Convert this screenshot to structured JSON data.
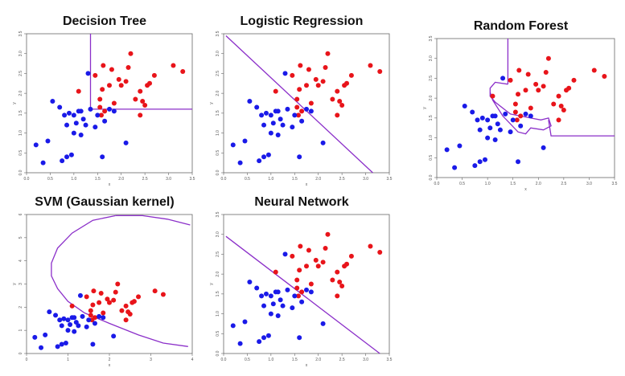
{
  "colors": {
    "class_red": "#e8141a",
    "class_blue": "#1a1ae8",
    "boundary": "#8b2fc9",
    "frame": "#666666"
  },
  "shared_points": {
    "red": [
      [
        1.1,
        2.05
      ],
      [
        1.45,
        2.45
      ],
      [
        1.55,
        1.85
      ],
      [
        1.6,
        2.1
      ],
      [
        1.62,
        2.7
      ],
      [
        1.58,
        1.45
      ],
      [
        1.55,
        1.65
      ],
      [
        1.65,
        1.55
      ],
      [
        1.75,
        2.2
      ],
      [
        1.8,
        2.6
      ],
      [
        1.85,
        1.75
      ],
      [
        1.95,
        2.35
      ],
      [
        2.0,
        2.2
      ],
      [
        2.1,
        2.3
      ],
      [
        2.15,
        2.65
      ],
      [
        2.2,
        3.0
      ],
      [
        2.3,
        1.85
      ],
      [
        2.4,
        2.05
      ],
      [
        2.4,
        1.45
      ],
      [
        2.5,
        1.7
      ],
      [
        2.55,
        2.2
      ],
      [
        2.6,
        2.25
      ],
      [
        2.7,
        2.45
      ],
      [
        3.1,
        2.7
      ],
      [
        3.3,
        2.55
      ],
      [
        2.45,
        1.8
      ]
    ],
    "blue": [
      [
        0.2,
        0.7
      ],
      [
        0.35,
        0.25
      ],
      [
        0.45,
        0.8
      ],
      [
        0.55,
        1.8
      ],
      [
        0.7,
        1.65
      ],
      [
        0.8,
        1.45
      ],
      [
        0.85,
        1.2
      ],
      [
        0.85,
        0.4
      ],
      [
        0.95,
        0.45
      ],
      [
        0.9,
        1.5
      ],
      [
        1.0,
        1.45
      ],
      [
        1.0,
        1.0
      ],
      [
        1.05,
        1.25
      ],
      [
        1.1,
        1.55
      ],
      [
        1.15,
        1.55
      ],
      [
        1.2,
        1.35
      ],
      [
        1.25,
        1.2
      ],
      [
        1.3,
        2.5
      ],
      [
        1.35,
        1.6
      ],
      [
        1.45,
        1.15
      ],
      [
        1.5,
        1.45
      ],
      [
        1.6,
        0.4
      ],
      [
        1.65,
        1.3
      ],
      [
        1.75,
        1.6
      ],
      [
        1.85,
        1.55
      ],
      [
        2.1,
        0.75
      ],
      [
        0.75,
        0.3
      ],
      [
        1.15,
        0.95
      ]
    ]
  },
  "chart_data": [
    {
      "type": "scatter",
      "title": "Decision Tree",
      "xlabel": "x",
      "ylabel": "y",
      "xlim": [
        0.0,
        3.5
      ],
      "ylim": [
        0.0,
        3.5
      ],
      "xticks": [
        0.0,
        0.5,
        1.0,
        1.5,
        2.0,
        2.5,
        3.0,
        3.5
      ],
      "yticks": [
        0.0,
        0.5,
        1.0,
        1.5,
        2.0,
        2.5,
        3.0,
        3.5
      ],
      "xtick_labels": [
        "0.0",
        "0.5",
        "1.0",
        "1.5",
        "2.0",
        "2.5",
        "3.0",
        "3.5"
      ],
      "ytick_labels": [
        "0.0",
        "0.5",
        "1.0",
        "1.5",
        "2.0",
        "2.5",
        "3.0",
        "3.5"
      ],
      "series": [
        {
          "color": "#e8141a",
          "ref": "red"
        },
        {
          "color": "#1a1ae8",
          "ref": "blue"
        }
      ],
      "boundary": [
        [
          [
            1.35,
            3.5
          ],
          [
            1.35,
            1.6
          ],
          [
            3.5,
            1.6
          ]
        ]
      ]
    },
    {
      "type": "scatter",
      "title": "Logistic Regression",
      "xlabel": "x",
      "ylabel": "y",
      "xlim": [
        0.0,
        3.5
      ],
      "ylim": [
        0.0,
        3.5
      ],
      "xticks": [
        0.0,
        0.5,
        1.0,
        1.5,
        2.0,
        2.5,
        3.0,
        3.5
      ],
      "yticks": [
        0.0,
        0.5,
        1.0,
        1.5,
        2.0,
        2.5,
        3.0,
        3.5
      ],
      "xtick_labels": [
        "0.0",
        "0.5",
        "1.0",
        "1.5",
        "2.0",
        "2.5",
        "3.0",
        "3.5"
      ],
      "ytick_labels": [
        "0.0",
        "0.5",
        "1.0",
        "1.5",
        "2.0",
        "2.5",
        "3.0",
        "3.5"
      ],
      "series": [
        {
          "color": "#e8141a",
          "ref": "red"
        },
        {
          "color": "#1a1ae8",
          "ref": "blue"
        }
      ],
      "boundary": [
        [
          [
            0.05,
            3.45
          ],
          [
            3.15,
            0.0
          ]
        ]
      ]
    },
    {
      "type": "scatter",
      "title": "Random Forest",
      "xlabel": "x",
      "ylabel": "y",
      "xlim": [
        0.0,
        3.5
      ],
      "ylim": [
        0.0,
        3.5
      ],
      "xticks": [
        0.0,
        0.5,
        1.0,
        1.5,
        2.0,
        2.5,
        3.0,
        3.5
      ],
      "yticks": [
        0.0,
        0.5,
        1.0,
        1.5,
        2.0,
        2.5,
        3.0,
        3.5
      ],
      "xtick_labels": [
        "0.0",
        "0.5",
        "1.0",
        "1.5",
        "2.0",
        "2.5",
        "3.0",
        "3.5"
      ],
      "ytick_labels": [
        "0.0",
        "0.5",
        "1.0",
        "1.5",
        "2.0",
        "2.5",
        "3.0",
        "3.5"
      ],
      "series": [
        {
          "color": "#e8141a",
          "ref": "red"
        },
        {
          "color": "#1a1ae8",
          "ref": "blue"
        }
      ],
      "boundary": [
        [
          [
            1.4,
            3.5
          ],
          [
            1.4,
            2.35
          ]
        ],
        [
          [
            1.4,
            2.35
          ],
          [
            1.15,
            2.4
          ],
          [
            1.05,
            2.25
          ],
          [
            1.05,
            2.05
          ],
          [
            1.15,
            1.9
          ],
          [
            1.35,
            1.7
          ],
          [
            1.45,
            1.6
          ],
          [
            1.65,
            1.55
          ],
          [
            1.85,
            1.5
          ],
          [
            2.05,
            1.45
          ],
          [
            2.2,
            1.5
          ],
          [
            2.25,
            1.3
          ],
          [
            2.1,
            1.2
          ],
          [
            1.85,
            1.25
          ],
          [
            1.75,
            1.1
          ],
          [
            1.6,
            1.15
          ],
          [
            1.45,
            1.35
          ],
          [
            1.3,
            1.55
          ],
          [
            1.2,
            1.75
          ],
          [
            1.1,
            1.95
          ],
          [
            1.05,
            2.15
          ]
        ],
        [
          [
            2.2,
            1.45
          ],
          [
            2.25,
            1.05
          ],
          [
            3.5,
            1.05
          ]
        ]
      ]
    },
    {
      "type": "scatter",
      "title": "SVM (Gaussian kernel)",
      "xlabel": "x",
      "ylabel": "y",
      "xlim": [
        0.0,
        4.0
      ],
      "ylim": [
        0.0,
        6.0
      ],
      "xticks": [
        0,
        1,
        2,
        3,
        4
      ],
      "yticks": [
        0,
        1,
        2,
        3,
        4,
        5,
        6
      ],
      "xtick_labels": [
        "0",
        "1",
        "2",
        "3",
        "4"
      ],
      "ytick_labels": [
        "0",
        "1",
        "2",
        "3",
        "4",
        "5",
        "6"
      ],
      "series": [
        {
          "color": "#e8141a",
          "ref": "red"
        },
        {
          "color": "#1a1ae8",
          "ref": "blue"
        }
      ],
      "boundary": [
        [
          [
            2.15,
            5.95
          ],
          [
            1.6,
            5.75
          ],
          [
            1.1,
            5.2
          ],
          [
            0.75,
            4.55
          ],
          [
            0.6,
            3.9
          ],
          [
            0.6,
            3.35
          ],
          [
            0.75,
            2.8
          ],
          [
            1.0,
            2.25
          ],
          [
            1.4,
            1.75
          ],
          [
            2.0,
            1.3
          ],
          [
            2.7,
            0.8
          ],
          [
            3.3,
            0.45
          ],
          [
            3.9,
            0.3
          ]
        ],
        [
          [
            2.15,
            5.95
          ],
          [
            2.8,
            5.95
          ],
          [
            3.4,
            5.8
          ],
          [
            3.95,
            5.55
          ]
        ]
      ]
    },
    {
      "type": "scatter",
      "title": "Neural Network",
      "xlabel": "x",
      "ylabel": "y",
      "xlim": [
        0.0,
        3.5
      ],
      "ylim": [
        0.0,
        3.5
      ],
      "xticks": [
        0.0,
        0.5,
        1.0,
        1.5,
        2.0,
        2.5,
        3.0,
        3.5
      ],
      "yticks": [
        0.0,
        0.5,
        1.0,
        1.5,
        2.0,
        2.5,
        3.0,
        3.5
      ],
      "xtick_labels": [
        "0.0",
        "0.5",
        "1.0",
        "1.5",
        "2.0",
        "2.5",
        "3.0",
        "3.5"
      ],
      "ytick_labels": [
        "0.0",
        "0.5",
        "1.0",
        "1.5",
        "2.0",
        "2.5",
        "3.0",
        "3.5"
      ],
      "series": [
        {
          "color": "#e8141a",
          "ref": "red"
        },
        {
          "color": "#1a1ae8",
          "ref": "blue"
        }
      ],
      "boundary": [
        [
          [
            0.05,
            2.95
          ],
          [
            3.3,
            0.0
          ]
        ]
      ]
    }
  ]
}
